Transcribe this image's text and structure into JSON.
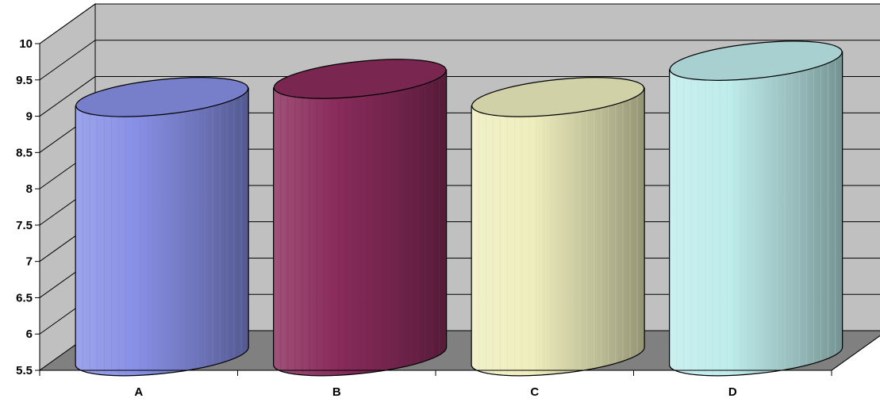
{
  "chart_data": {
    "type": "bar",
    "subtype": "3d-cylinder",
    "title": "",
    "xlabel": "",
    "ylabel": "",
    "categories": [
      "A",
      "B",
      "C",
      "D"
    ],
    "values": [
      9.3,
      9.55,
      9.3,
      9.8
    ],
    "ylim": [
      5.5,
      10
    ],
    "yticks": [
      "5.5",
      "6",
      "6.5",
      "7",
      "7.5",
      "8",
      "8.5",
      "9",
      "9.5",
      "10"
    ],
    "grid": true,
    "legend": "none",
    "colors": {
      "A": "#8890e6",
      "B": "#8a2c5c",
      "C": "#eeeebe",
      "D": "#bfecec"
    },
    "wall_color": "#c0c0c0",
    "floor_color": "#808080"
  }
}
